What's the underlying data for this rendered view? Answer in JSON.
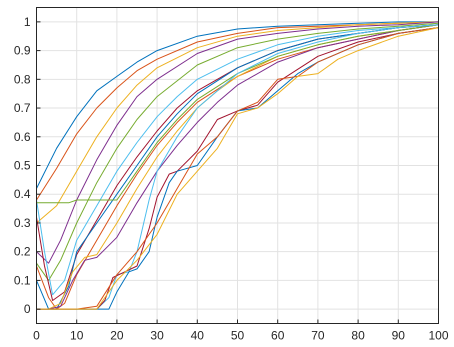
{
  "chart_data": {
    "type": "line",
    "title": "",
    "xlabel": "",
    "ylabel": "",
    "xlim": [
      0,
      100
    ],
    "ylim": [
      -0.05,
      1.05
    ],
    "grid": true,
    "legend": "none",
    "x_ticks": [
      "0",
      "10",
      "20",
      "30",
      "40",
      "50",
      "60",
      "70",
      "80",
      "90",
      "100"
    ],
    "y_ticks": [
      "0",
      "0.1",
      "0.2",
      "0.3",
      "0.4",
      "0.5",
      "0.6",
      "0.7",
      "0.8",
      "0.9",
      "1"
    ],
    "colors": [
      "#0072bd",
      "#d95319",
      "#edb120",
      "#7e2f8e",
      "#77ac30",
      "#4dbeee",
      "#a2142f"
    ],
    "series": [
      {
        "x": [
          0,
          5,
          10,
          15,
          20,
          25,
          30,
          40,
          50,
          60,
          70,
          80,
          90,
          100
        ],
        "y": [
          0.42,
          0.56,
          0.67,
          0.76,
          0.81,
          0.86,
          0.9,
          0.95,
          0.975,
          0.985,
          0.99,
          0.995,
          1.0,
          1.0
        ]
      },
      {
        "x": [
          0,
          5,
          10,
          15,
          20,
          25,
          30,
          40,
          50,
          60,
          70,
          80,
          90,
          100
        ],
        "y": [
          0.38,
          0.49,
          0.61,
          0.7,
          0.77,
          0.83,
          0.87,
          0.93,
          0.96,
          0.98,
          0.985,
          0.99,
          0.995,
          1.0
        ]
      },
      {
        "x": [
          0,
          5,
          10,
          15,
          20,
          25,
          30,
          40,
          50,
          60,
          70,
          80,
          90,
          100
        ],
        "y": [
          0.3,
          0.36,
          0.48,
          0.6,
          0.7,
          0.78,
          0.84,
          0.91,
          0.95,
          0.97,
          0.98,
          0.99,
          0.995,
          1.0
        ]
      },
      {
        "x": [
          0,
          3,
          6,
          10,
          15,
          20,
          25,
          30,
          40,
          50,
          60,
          70,
          80,
          90,
          100
        ],
        "y": [
          0.2,
          0.16,
          0.24,
          0.38,
          0.52,
          0.64,
          0.74,
          0.8,
          0.89,
          0.94,
          0.96,
          0.975,
          0.985,
          0.99,
          1.0
        ]
      },
      {
        "x": [
          0,
          3,
          6,
          10,
          15,
          20,
          25,
          30,
          40,
          50,
          60,
          70,
          80,
          90,
          100
        ],
        "y": [
          0.16,
          0.1,
          0.17,
          0.3,
          0.44,
          0.56,
          0.66,
          0.74,
          0.85,
          0.91,
          0.94,
          0.96,
          0.975,
          0.985,
          0.995
        ]
      },
      {
        "x": [
          0,
          2,
          4,
          7,
          10,
          15,
          20,
          25,
          30,
          35,
          40,
          50,
          60,
          70,
          80,
          90,
          100
        ],
        "y": [
          0.38,
          0.2,
          0.05,
          0.1,
          0.24,
          0.36,
          0.48,
          0.58,
          0.67,
          0.74,
          0.8,
          0.87,
          0.92,
          0.95,
          0.97,
          0.98,
          0.99
        ]
      },
      {
        "x": [
          0,
          2,
          4,
          7,
          10,
          15,
          20,
          25,
          30,
          35,
          40,
          50,
          60,
          70,
          80,
          90,
          100
        ],
        "y": [
          0.32,
          0.15,
          0.03,
          0.06,
          0.19,
          0.31,
          0.43,
          0.53,
          0.62,
          0.7,
          0.76,
          0.84,
          0.9,
          0.94,
          0.96,
          0.98,
          0.99
        ]
      },
      {
        "x": [
          0,
          3,
          5,
          8,
          10,
          15,
          20,
          25,
          30,
          35,
          40,
          50,
          60,
          70,
          80,
          90,
          100
        ],
        "y": [
          0.1,
          0.0,
          0.0,
          0.08,
          0.2,
          0.3,
          0.4,
          0.5,
          0.6,
          0.68,
          0.75,
          0.84,
          0.9,
          0.94,
          0.96,
          0.98,
          0.99
        ]
      },
      {
        "x": [
          0,
          3,
          5,
          7,
          10,
          15,
          20,
          25,
          30,
          35,
          40,
          50,
          60,
          70,
          80,
          90,
          100
        ],
        "y": [
          0.15,
          0.04,
          0.0,
          0.02,
          0.12,
          0.24,
          0.36,
          0.47,
          0.57,
          0.65,
          0.72,
          0.81,
          0.87,
          0.91,
          0.94,
          0.97,
          0.99
        ]
      },
      {
        "x": [
          0,
          3,
          6,
          9,
          12,
          15,
          20,
          25,
          30,
          35,
          40,
          45,
          50,
          60,
          70,
          80,
          90,
          100
        ],
        "y": [
          0.0,
          0.0,
          0.02,
          0.13,
          0.18,
          0.19,
          0.3,
          0.42,
          0.53,
          0.62,
          0.7,
          0.76,
          0.81,
          0.88,
          0.92,
          0.95,
          0.97,
          0.99
        ]
      },
      {
        "x": [
          0,
          3,
          6,
          9,
          12,
          15,
          20,
          25,
          30,
          35,
          40,
          45,
          50,
          60,
          70,
          80,
          90,
          100
        ],
        "y": [
          0.0,
          0.0,
          0.01,
          0.1,
          0.17,
          0.18,
          0.25,
          0.37,
          0.48,
          0.57,
          0.65,
          0.72,
          0.78,
          0.86,
          0.91,
          0.94,
          0.97,
          0.99
        ]
      },
      {
        "x": [
          0,
          2,
          4,
          6,
          8,
          10,
          15,
          20,
          25,
          30,
          35,
          40,
          50,
          60,
          70,
          80,
          90,
          100
        ],
        "y": [
          0.37,
          0.37,
          0.37,
          0.37,
          0.37,
          0.38,
          0.38,
          0.38,
          0.48,
          0.58,
          0.66,
          0.73,
          0.82,
          0.88,
          0.92,
          0.95,
          0.97,
          0.99
        ]
      },
      {
        "x": [
          0,
          5,
          10,
          15,
          18,
          20,
          23,
          25,
          28,
          30,
          35,
          40,
          50,
          60,
          70,
          80,
          90,
          100
        ],
        "y": [
          0.0,
          0.0,
          0.0,
          0.0,
          0.04,
          0.12,
          0.13,
          0.2,
          0.38,
          0.48,
          0.6,
          0.7,
          0.82,
          0.89,
          0.93,
          0.96,
          0.98,
          0.99
        ]
      },
      {
        "x": [
          0,
          5,
          10,
          15,
          17,
          19,
          22,
          25,
          28,
          30,
          33,
          35,
          40,
          45,
          50,
          55,
          60,
          70,
          80,
          90,
          100
        ],
        "y": [
          0.0,
          0.0,
          0.0,
          0.0,
          0.03,
          0.11,
          0.13,
          0.15,
          0.28,
          0.39,
          0.47,
          0.48,
          0.55,
          0.66,
          0.69,
          0.71,
          0.79,
          0.88,
          0.93,
          0.96,
          0.98
        ]
      },
      {
        "x": [
          0,
          5,
          10,
          15,
          18,
          20,
          23,
          25,
          28,
          30,
          33,
          35,
          40,
          45,
          50,
          55,
          60,
          65,
          70,
          80,
          90,
          100
        ],
        "y": [
          0.0,
          0.0,
          0.0,
          0.0,
          0.0,
          0.06,
          0.13,
          0.14,
          0.2,
          0.32,
          0.44,
          0.48,
          0.5,
          0.6,
          0.69,
          0.7,
          0.76,
          0.82,
          0.86,
          0.92,
          0.96,
          0.98
        ]
      },
      {
        "x": [
          0,
          5,
          10,
          15,
          20,
          25,
          30,
          35,
          40,
          45,
          50,
          55,
          60,
          65,
          70,
          80,
          90,
          100
        ],
        "y": [
          0.0,
          0.0,
          0.0,
          0.01,
          0.12,
          0.2,
          0.3,
          0.42,
          0.54,
          0.6,
          0.69,
          0.72,
          0.8,
          0.81,
          0.86,
          0.92,
          0.96,
          0.98
        ]
      },
      {
        "x": [
          0,
          5,
          10,
          15,
          20,
          25,
          30,
          35,
          40,
          45,
          50,
          55,
          60,
          65,
          70,
          75,
          80,
          90,
          100
        ],
        "y": [
          0.0,
          0.0,
          0.0,
          0.0,
          0.1,
          0.17,
          0.26,
          0.4,
          0.48,
          0.56,
          0.68,
          0.7,
          0.75,
          0.81,
          0.82,
          0.87,
          0.9,
          0.95,
          0.98
        ]
      }
    ]
  }
}
